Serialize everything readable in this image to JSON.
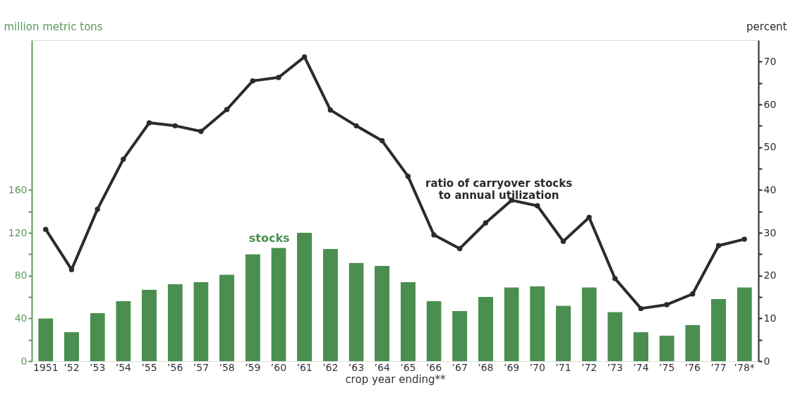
{
  "chart_data": {
    "type": "bar",
    "categories": [
      "1951",
      "’52",
      "’53",
      "’54",
      "’55",
      "’56",
      "’57",
      "’58",
      "’59",
      "’60",
      "’61",
      "’62",
      "’63",
      "’64",
      "’65",
      "’66",
      "’67",
      "’68",
      "’69",
      "’70",
      "’71",
      "’72",
      "’73",
      "’74",
      "’75",
      "’76",
      "’77",
      "’78*"
    ],
    "xlabel": "crop year ending**",
    "ylabel": "million metric tons",
    "y2label": "percent",
    "series": [
      {
        "name": "stocks",
        "color": "#4a8f4f",
        "values": [
          40,
          27,
          45,
          56,
          67,
          72,
          74,
          81,
          100,
          106,
          120,
          105,
          92,
          89,
          74,
          56,
          47,
          60,
          69,
          70,
          52,
          69,
          46,
          27,
          24,
          34,
          58,
          69
        ]
      },
      {
        "name": "ratio of carryover stocks\nto annual utilization",
        "type": "line",
        "axis": "y2",
        "color": "#2b2b2b",
        "values": [
          30.8,
          21.4,
          35.5,
          47.2,
          55.7,
          55,
          53.7,
          58.8,
          65.5,
          66.3,
          71.1,
          58.7,
          55,
          51.5,
          43.2,
          29.5,
          26.3,
          32.3,
          37.6,
          36.3,
          28,
          33.6,
          19.3,
          12.3,
          13.2,
          15.7,
          27,
          28.5
        ]
      }
    ],
    "ylim": [
      0,
      300
    ],
    "yticks": [
      0,
      {
        "value": 20,
        "label": null
      },
      40,
      {
        "value": 60,
        "label": null
      },
      80,
      {
        "value": 100,
        "label": null
      },
      120,
      {
        "value": 140,
        "label": null
      },
      160
    ],
    "y2lim": [
      0,
      75
    ],
    "y2ticks": [
      0,
      {
        "value": 5,
        "label": null
      },
      10,
      {
        "value": 15,
        "label": null
      },
      20,
      {
        "value": 25,
        "label": null
      },
      30,
      {
        "value": 35,
        "label": null
      },
      40,
      {
        "value": 45,
        "label": null
      },
      50,
      {
        "value": 55,
        "label": null
      },
      60,
      {
        "value": 65,
        "label": null
      },
      70
    ],
    "marker": "circle",
    "line_style": "solid",
    "grid": false
  }
}
